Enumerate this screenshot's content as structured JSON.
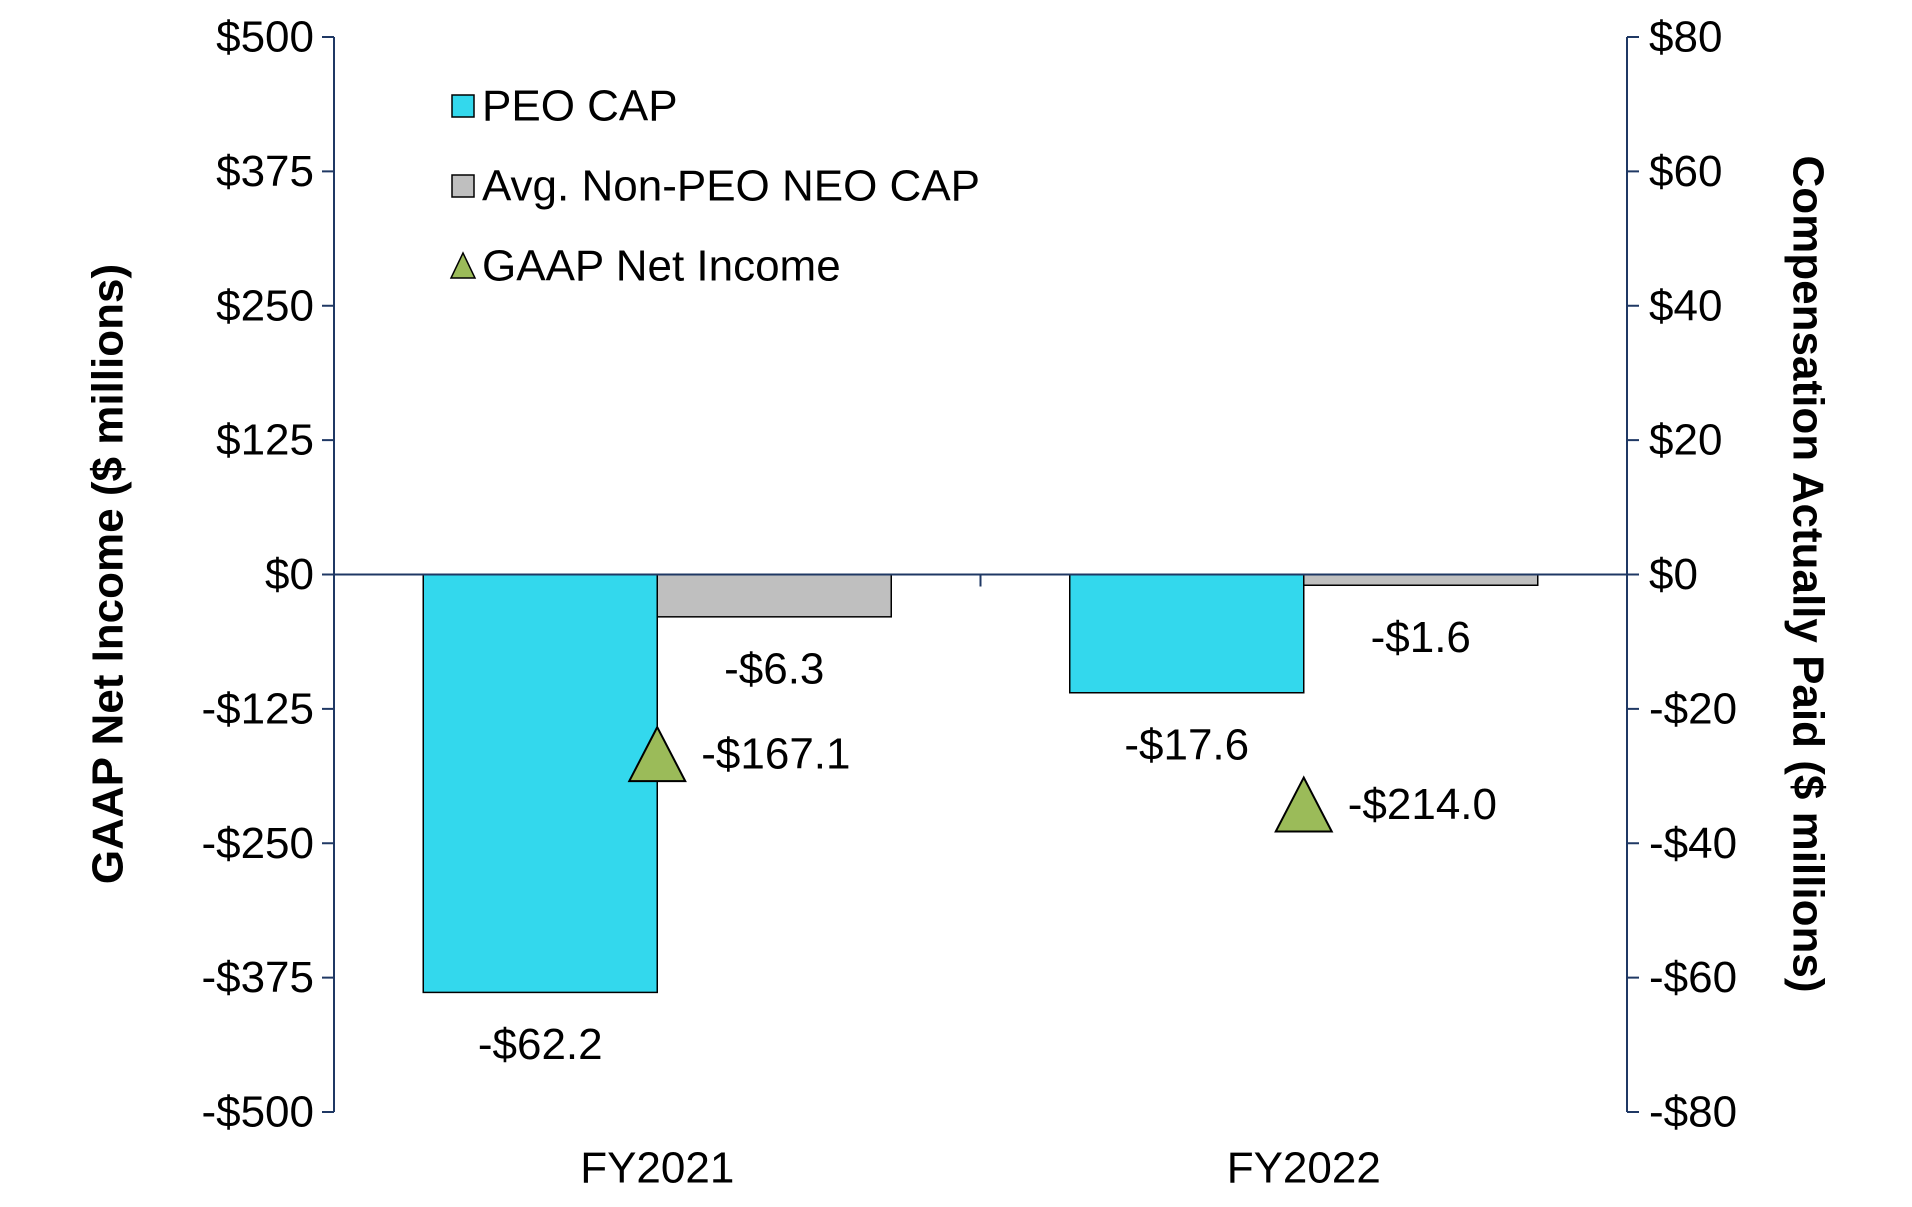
{
  "chart_data": {
    "type": "bar",
    "categories": [
      "FY2021",
      "FY2022"
    ],
    "series": [
      {
        "name": "PEO CAP",
        "axis": "right",
        "color": "#33D8ED",
        "values": [
          -62.2,
          -17.6
        ],
        "labels": [
          "-$62.2",
          "-$17.6"
        ]
      },
      {
        "name": "Avg. Non-PEO NEO CAP",
        "axis": "right",
        "color": "#BFBFBF",
        "values": [
          -6.3,
          -1.6
        ],
        "labels": [
          "-$6.3",
          "-$1.6"
        ]
      },
      {
        "name": "GAAP Net Income",
        "axis": "left",
        "marker": "triangle",
        "color": "#9BBB59",
        "values": [
          -167.1,
          -214.0
        ],
        "labels": [
          "-$167.1",
          "-$214.0"
        ]
      }
    ],
    "left_axis": {
      "title": "GAAP Net Income ($ millions)",
      "range": [
        -500,
        500
      ],
      "ticks": [
        500,
        375,
        250,
        125,
        0,
        -125,
        -250,
        -375,
        -500
      ],
      "tick_labels": [
        "$500",
        "$375",
        "$250",
        "$125",
        "$0",
        "-$125",
        "-$250",
        "-$375",
        "-$500"
      ]
    },
    "right_axis": {
      "title": "Compensation Actually Paid ($ millions)",
      "range": [
        -80,
        80
      ],
      "ticks": [
        80,
        60,
        40,
        20,
        0,
        -20,
        -40,
        -60,
        -80
      ],
      "tick_labels": [
        "$80",
        "$60",
        "$40",
        "$20",
        "$0",
        "-$20",
        "-$40",
        "-$60",
        "-$80"
      ]
    },
    "legend_position": "top-left",
    "grid": false,
    "axis_color": "#1F3864"
  }
}
